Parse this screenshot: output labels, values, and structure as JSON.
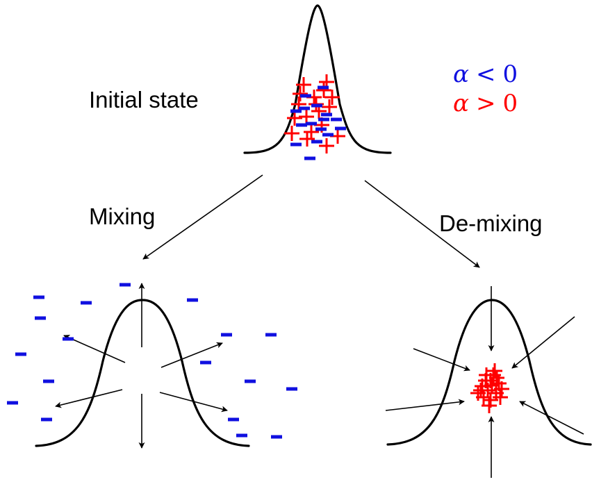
{
  "labels": {
    "initial_state": "Initial state",
    "mixing": "Mixing",
    "demixing": "De-mixing"
  },
  "legend": {
    "negative": {
      "symbol": "α",
      "relation": "<",
      "value": "0",
      "color": "#1010e0"
    },
    "positive": {
      "symbol": "α",
      "relation": ">",
      "value": "0",
      "color": "#ff0000"
    }
  },
  "colors": {
    "plus_marker": "#ff0000",
    "minus_marker": "#1010e0",
    "curve": "#000000"
  }
}
